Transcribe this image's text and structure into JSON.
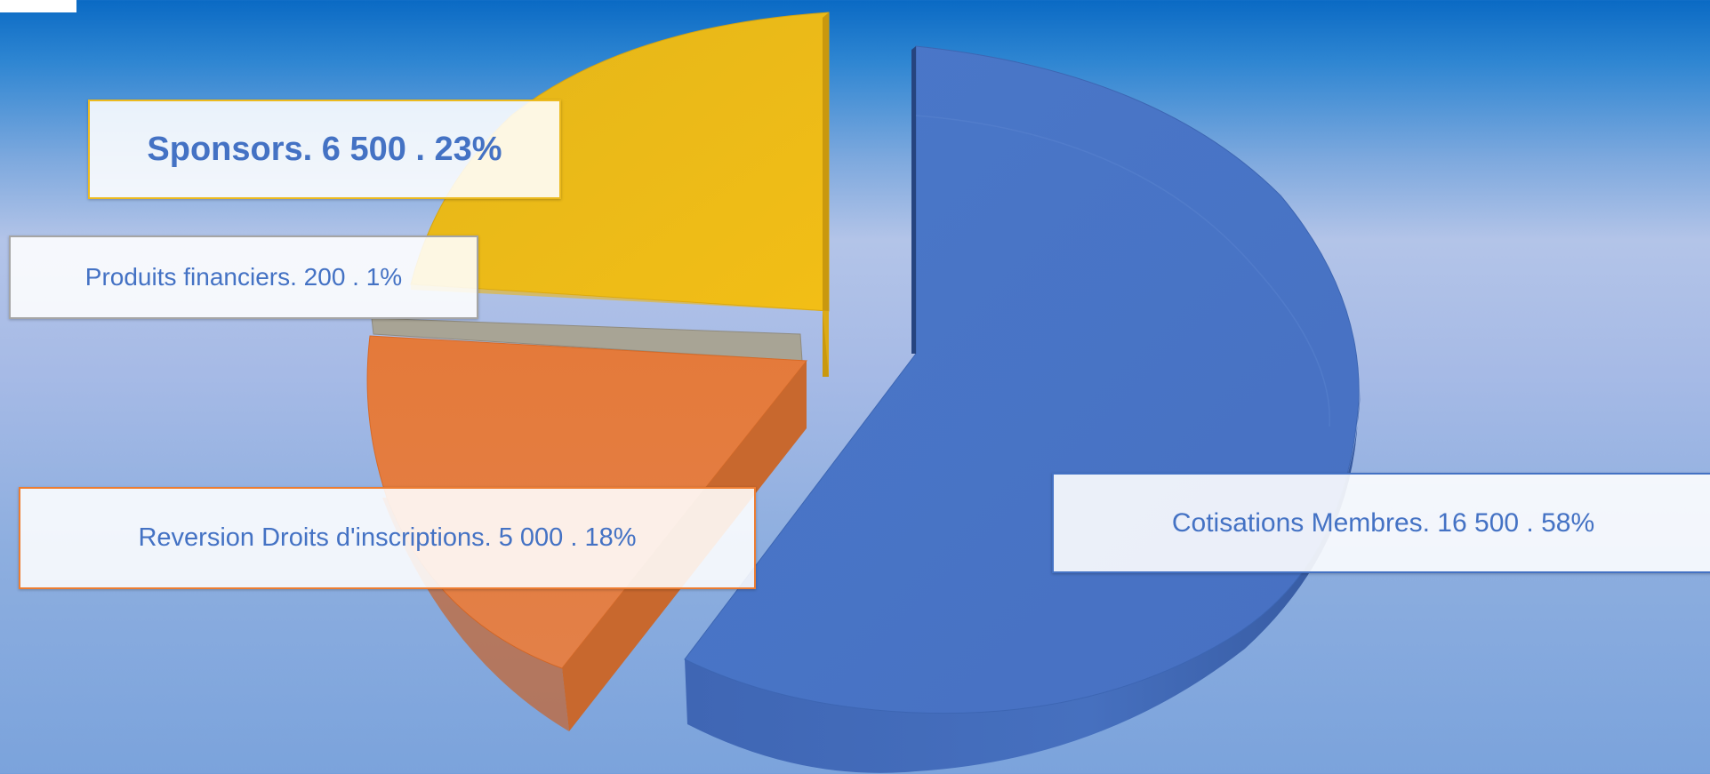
{
  "chart_data": {
    "type": "pie",
    "title": "",
    "slices": [
      {
        "label": "Cotisations Membres",
        "value": 16500,
        "percent": "58%",
        "color": "#4472c4",
        "text": "Cotisations Membres. 16 500 . 58%"
      },
      {
        "label": "Reversion Droits d'inscriptions",
        "value": 5000,
        "percent": "18%",
        "color": "#ed7d31",
        "text": "Reversion Droits d'inscriptions. 5 000 . 18%"
      },
      {
        "label": "Produits financiers",
        "value": 200,
        "percent": "1%",
        "color": "#a5a5a5",
        "text": "Produits financiers. 200 . 1%"
      },
      {
        "label": "Sponsors",
        "value": 6500,
        "percent": "23%",
        "color": "#ffc000",
        "text": "Sponsors. 6 500 . 23%"
      }
    ],
    "legend": "none",
    "style": "3d-exploded"
  }
}
